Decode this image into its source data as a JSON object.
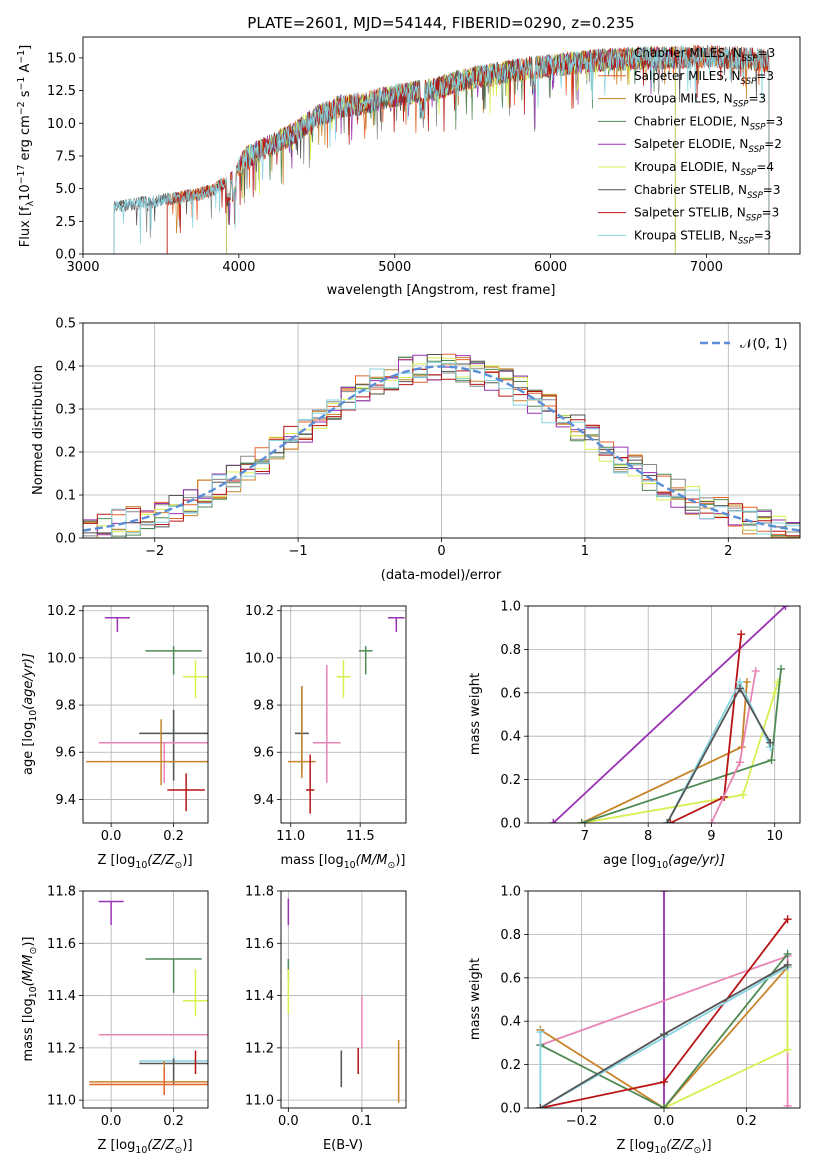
{
  "colors": {
    "chabrier_miles": "#888888",
    "salpeter_miles": "#e8622a",
    "kroupa_miles": "#c8842a",
    "chabrier_elodie": "#4f8a55",
    "salpeter_elodie": "#9a32b4",
    "kroupa_elodie": "#d8ef52",
    "chabrier_stelib": "#555555",
    "salpeter_stelib": "#b81414",
    "kroupa_stelib": "#86d4e0",
    "pink": "#e885b5",
    "gaussian": "#5b8ed8",
    "grid": "#b0b0b0"
  },
  "chart_data": [
    {
      "id": "spectrum",
      "type": "line",
      "title": "PLATE=2601, MJD=54144, FIBERID=0290, z=0.235",
      "xlabel": "wavelength [Angstrom, rest frame]",
      "ylabel": "Flux [f",
      "ylabel_sub": "λ",
      "ylabel_rest": "10",
      "ylabel_sup": "−17",
      "ylabel_units": " erg cm",
      "ylabel_sup2": "−2",
      "ylabel_units2": " s",
      "ylabel_sup3": "−1",
      "ylabel_units3": " A",
      "ylabel_sup4": "−1",
      "ylabel_end": "]",
      "xlim": [
        3000,
        7600
      ],
      "ylim": [
        0,
        16.6
      ],
      "xticks": [
        3000,
        4000,
        5000,
        6000,
        7000
      ],
      "yticks": [
        0.0,
        2.5,
        5.0,
        7.5,
        10.0,
        12.5,
        15.0
      ],
      "grid": false,
      "legend_position": "top-right",
      "legend": [
        {
          "name": "Chabrier MILES, N",
          "sub": "SSP",
          "tail": "=3",
          "color": "chabrier_miles"
        },
        {
          "name": "Salpeter MILES, N",
          "sub": "SSP",
          "tail": "=3",
          "color": "salpeter_miles"
        },
        {
          "name": "Kroupa MILES, N",
          "sub": "SSP",
          "tail": "=3",
          "color": "kroupa_miles"
        },
        {
          "name": "Chabrier ELODIE, N",
          "sub": "SSP",
          "tail": "=3",
          "color": "chabrier_elodie"
        },
        {
          "name": "Salpeter ELODIE, N",
          "sub": "SSP",
          "tail": "=2",
          "color": "salpeter_elodie"
        },
        {
          "name": "Kroupa ELODIE, N",
          "sub": "SSP",
          "tail": "=4",
          "color": "kroupa_elodie"
        },
        {
          "name": "Chabrier STELIB, N",
          "sub": "SSP",
          "tail": "=3",
          "color": "chabrier_stelib"
        },
        {
          "name": "Salpeter STELIB, N",
          "sub": "SSP",
          "tail": "=3",
          "color": "salpeter_stelib"
        },
        {
          "name": "Kroupa STELIB, N",
          "sub": "SSP",
          "tail": "=3",
          "color": "kroupa_stelib"
        }
      ],
      "flux_envelope": {
        "x": [
          3200,
          3300,
          3450,
          3600,
          3750,
          3850,
          3950,
          4050,
          4200,
          4350,
          4500,
          4650,
          4800,
          4950,
          5100,
          5250,
          5400,
          5550,
          5700,
          5850,
          6000,
          6150,
          6300,
          6450,
          6600,
          6750,
          6900,
          7050,
          7200,
          7400
        ],
        "y": [
          3.6,
          3.8,
          4.0,
          4.3,
          4.6,
          5.0,
          5.8,
          7.4,
          8.3,
          9.2,
          10.5,
          11.3,
          11.5,
          12.0,
          12.3,
          12.6,
          13.2,
          13.6,
          13.9,
          14.2,
          14.4,
          14.6,
          14.8,
          14.9,
          15.0,
          15.0,
          15.1,
          15.1,
          15.0,
          14.8
        ]
      },
      "series_ranges": [
        {
          "color": "chabrier_miles",
          "x": [
            3200,
            7400
          ]
        },
        {
          "color": "salpeter_miles",
          "x": [
            3540,
            7400
          ]
        },
        {
          "color": "kroupa_miles",
          "x": [
            3540,
            7400
          ]
        },
        {
          "color": "chabrier_elodie",
          "x": [
            3920,
            6800
          ]
        },
        {
          "color": "salpeter_elodie",
          "x": [
            3920,
            6800
          ]
        },
        {
          "color": "kroupa_elodie",
          "x": [
            3920,
            6800
          ]
        },
        {
          "color": "chabrier_stelib",
          "x": [
            3200,
            7400
          ]
        },
        {
          "color": "salpeter_stelib",
          "x": [
            3540,
            7400
          ]
        },
        {
          "color": "kroupa_stelib",
          "x": [
            3200,
            7400
          ]
        }
      ]
    },
    {
      "id": "residuals",
      "type": "histogram",
      "xlabel": "(data-model)/error",
      "ylabel": "Normed distribution",
      "xlim": [
        -2.5,
        2.5
      ],
      "ylim": [
        0,
        0.5
      ],
      "xticks": [
        -2,
        -1,
        0,
        1,
        2
      ],
      "xticklabels": [
        "−2",
        "−1",
        "0",
        "1",
        "2"
      ],
      "yticks": [
        0.0,
        0.1,
        0.2,
        0.3,
        0.4,
        0.5
      ],
      "grid": true,
      "legend_position": "top-right",
      "legend": [
        {
          "name": "𝒩(0, 1)",
          "color": "gaussian",
          "dashed": true
        }
      ],
      "bin_width": 0.1,
      "noise_amplitude": 0.035,
      "series_colors": [
        "chabrier_miles",
        "salpeter_miles",
        "kroupa_miles",
        "chabrier_elodie",
        "salpeter_elodie",
        "kroupa_elodie",
        "chabrier_stelib",
        "salpeter_stelib",
        "kroupa_stelib"
      ]
    },
    {
      "id": "age_vs_Z",
      "type": "scatter",
      "xlabel": "Z [log",
      "xlabel_sub": "10",
      "xlabel_tail": "(Z/Z",
      "xlabel_sub2": "⊙",
      "xlabel_end": ")]",
      "ylabel": "age  [log",
      "ylabel_sub": "10",
      "ylabel_tail": "(age/yr)]",
      "xlim": [
        -0.09,
        0.31
      ],
      "ylim": [
        9.3,
        10.22
      ],
      "xticks": [
        0.0,
        0.2
      ],
      "yticks": [
        9.4,
        9.6,
        9.8,
        10.0,
        10.2
      ],
      "grid": true,
      "points": [
        {
          "x": 0.02,
          "y": 10.17,
          "xe": 0.04,
          "ye_lo": 0.06,
          "ye_hi": 0.0,
          "color": "salpeter_elodie"
        },
        {
          "x": 0.2,
          "y": 10.03,
          "xe": 0.09,
          "ye_lo": 0.1,
          "ye_hi": 0.02,
          "color": "chabrier_elodie"
        },
        {
          "x": 0.27,
          "y": 9.92,
          "xe": 0.04,
          "ye_lo": 0.09,
          "ye_hi": 0.07,
          "color": "kroupa_elodie"
        },
        {
          "x": 0.2,
          "y": 9.68,
          "xe": 0.11,
          "ye_lo": 0.2,
          "ye_hi": 0.1,
          "color": "kroupa_stelib"
        },
        {
          "x": 0.2,
          "y": 9.68,
          "xe": 0.11,
          "ye_lo": 0.2,
          "ye_hi": 0.1,
          "color": "chabrier_stelib"
        },
        {
          "x": 0.17,
          "y": 9.64,
          "xe": 0.21,
          "ye_lo": 0.17,
          "ye_hi": 0.0,
          "color": "pink"
        },
        {
          "x": 0.16,
          "y": 9.56,
          "xe": 0.24,
          "ye_lo": 0.1,
          "ye_hi": 0.18,
          "color": "kroupa_miles"
        },
        {
          "x": 0.24,
          "y": 9.44,
          "xe": 0.06,
          "ye_lo": 0.09,
          "ye_hi": 0.07,
          "color": "salpeter_stelib"
        }
      ]
    },
    {
      "id": "age_vs_mass",
      "type": "scatter",
      "xlabel": "mass [log",
      "xlabel_sub": "10",
      "xlabel_tail": "(M/M",
      "xlabel_sub2": "⊙",
      "xlabel_end": ")]",
      "xlim": [
        10.93,
        11.83
      ],
      "ylim": [
        9.3,
        10.22
      ],
      "xticks": [
        11.0,
        11.5
      ],
      "yticks": [
        9.4,
        9.6,
        9.8,
        10.0,
        10.2
      ],
      "grid": true,
      "points": [
        {
          "x": 11.76,
          "y": 10.17,
          "xe": 0.06,
          "ye_lo": 0.06,
          "ye_hi": 0.0,
          "color": "salpeter_elodie"
        },
        {
          "x": 11.54,
          "y": 10.03,
          "xe": 0.05,
          "ye_lo": 0.1,
          "ye_hi": 0.02,
          "color": "chabrier_elodie"
        },
        {
          "x": 11.38,
          "y": 9.92,
          "xe": 0.05,
          "ye_lo": 0.09,
          "ye_hi": 0.07,
          "color": "kroupa_elodie"
        },
        {
          "x": 11.26,
          "y": 9.64,
          "xe": 0.1,
          "ye_lo": 0.17,
          "ye_hi": 0.33,
          "color": "pink"
        },
        {
          "x": 11.08,
          "y": 9.68,
          "xe": 0.05,
          "ye_lo": 0.17,
          "ye_hi": 0.2,
          "color": "kroupa_stelib"
        },
        {
          "x": 11.08,
          "y": 9.68,
          "xe": 0.05,
          "ye_lo": 0.17,
          "ye_hi": 0.2,
          "color": "chabrier_stelib"
        },
        {
          "x": 11.08,
          "y": 9.56,
          "xe": 0.1,
          "ye_lo": 0.07,
          "ye_hi": 0.32,
          "color": "kroupa_miles"
        },
        {
          "x": 11.14,
          "y": 9.44,
          "xe": 0.03,
          "ye_lo": 0.1,
          "ye_hi": 0.15,
          "color": "salpeter_stelib"
        }
      ]
    },
    {
      "id": "massweight_vs_age",
      "type": "line",
      "xlabel": "age  [log",
      "xlabel_sub": "10",
      "xlabel_tail": "(age/yr)]",
      "ylabel": "mass weight",
      "xlim": [
        6.1,
        10.4
      ],
      "ylim": [
        0,
        1
      ],
      "xticks": [
        7,
        8,
        9,
        10
      ],
      "yticks": [
        0.0,
        0.2,
        0.4,
        0.6,
        0.8,
        1.0
      ],
      "grid": true,
      "series": [
        {
          "color": "salpeter_elodie",
          "x": [
            6.5,
            10.17
          ],
          "y": [
            0.0,
            1.0
          ]
        },
        {
          "color": "kroupa_miles",
          "x": [
            6.95,
            9.48,
            9.56
          ],
          "y": [
            0.0,
            0.35,
            0.65
          ]
        },
        {
          "color": "kroupa_elodie",
          "x": [
            6.95,
            9.5,
            10.0,
            10.05
          ],
          "y": [
            0.0,
            0.13,
            0.6,
            0.65
          ]
        },
        {
          "color": "chabrier_elodie",
          "x": [
            6.95,
            9.95,
            10.1
          ],
          "y": [
            0.0,
            0.29,
            0.71
          ]
        },
        {
          "color": "salpeter_stelib",
          "x": [
            8.35,
            9.2,
            9.47
          ],
          "y": [
            0.0,
            0.12,
            0.87
          ]
        },
        {
          "color": "pink",
          "x": [
            9.0,
            9.45,
            9.7
          ],
          "y": [
            0.0,
            0.28,
            0.7
          ]
        },
        {
          "color": "kroupa_stelib",
          "x": [
            8.3,
            9.45,
            9.93
          ],
          "y": [
            0.0,
            0.65,
            0.35
          ]
        },
        {
          "color": "chabrier_stelib",
          "x": [
            8.3,
            9.45,
            9.93
          ],
          "y": [
            0.0,
            0.62,
            0.37
          ]
        }
      ]
    },
    {
      "id": "mass_vs_Z",
      "type": "scatter",
      "xlabel": "Z [log",
      "xlabel_sub": "10",
      "xlabel_tail": "(Z/Z",
      "xlabel_sub2": "⊙",
      "xlabel_end": ")]",
      "ylabel": "mass [log",
      "ylabel_sub": "10",
      "ylabel_tail": "(M/M",
      "ylabel_sub2": "⊙",
      "ylabel_end": ")]",
      "xlim": [
        -0.09,
        0.31
      ],
      "ylim": [
        10.97,
        11.8
      ],
      "xticks": [
        0.0,
        0.2
      ],
      "yticks": [
        11.0,
        11.2,
        11.4,
        11.6,
        11.8
      ],
      "grid": true,
      "points": [
        {
          "x": 0.0,
          "y": 11.76,
          "xe": 0.04,
          "ye_lo": 0.09,
          "ye_hi": 0.0,
          "color": "salpeter_elodie"
        },
        {
          "x": 0.2,
          "y": 11.54,
          "xe": 0.09,
          "ye_lo": 0.13,
          "ye_hi": 0.0,
          "color": "chabrier_elodie"
        },
        {
          "x": 0.27,
          "y": 11.38,
          "xe": 0.04,
          "ye_lo": 0.06,
          "ye_hi": 0.12,
          "color": "kroupa_elodie"
        },
        {
          "x": 0.17,
          "y": 11.25,
          "xe": 0.21,
          "ye_lo": 0.0,
          "ye_hi": 0.0,
          "color": "pink"
        },
        {
          "x": 0.2,
          "y": 11.15,
          "xe": 0.11,
          "ye_lo": 0.08,
          "ye_hi": 0.02,
          "color": "kroupa_stelib"
        },
        {
          "x": 0.2,
          "y": 11.14,
          "xe": 0.11,
          "ye_lo": 0.08,
          "ye_hi": 0.02,
          "color": "chabrier_stelib"
        },
        {
          "x": 0.27,
          "y": 11.14,
          "xe": 0.0,
          "ye_lo": 0.04,
          "ye_hi": 0.05,
          "color": "salpeter_stelib"
        },
        {
          "x": 0.17,
          "y": 11.07,
          "xe": 0.24,
          "ye_lo": 0.04,
          "ye_hi": 0.08,
          "color": "kroupa_miles"
        },
        {
          "x": 0.17,
          "y": 11.06,
          "xe": 0.24,
          "ye_lo": 0.04,
          "ye_hi": 0.06,
          "color": "salpeter_miles"
        }
      ]
    },
    {
      "id": "mass_vs_ebv",
      "type": "scatter",
      "xlabel": "E(B-V)",
      "xlim": [
        -0.01,
        0.16
      ],
      "ylim": [
        10.97,
        11.8
      ],
      "xticks": [
        0.0,
        0.1
      ],
      "yticks": [
        11.0,
        11.2,
        11.4,
        11.6,
        11.8
      ],
      "grid": true,
      "points": [
        {
          "x": 0.0,
          "y": 11.72,
          "xe": 0.0,
          "ye_lo": 0.05,
          "ye_hi": 0.05,
          "color": "salpeter_elodie"
        },
        {
          "x": 0.0,
          "y": 11.5,
          "xe": 0.0,
          "ye_lo": 0.04,
          "ye_hi": 0.04,
          "color": "chabrier_elodie"
        },
        {
          "x": 0.0,
          "y": 11.42,
          "xe": 0.0,
          "ye_lo": 0.09,
          "ye_hi": 0.08,
          "color": "kroupa_elodie"
        },
        {
          "x": 0.1,
          "y": 11.25,
          "xe": 0.0,
          "ye_lo": 0.05,
          "ye_hi": 0.15,
          "color": "pink"
        },
        {
          "x": 0.095,
          "y": 11.15,
          "xe": 0.0,
          "ye_lo": 0.05,
          "ye_hi": 0.05,
          "color": "salpeter_stelib"
        },
        {
          "x": 0.072,
          "y": 11.12,
          "xe": 0.0,
          "ye_lo": 0.07,
          "ye_hi": 0.07,
          "color": "kroupa_stelib"
        },
        {
          "x": 0.072,
          "y": 11.12,
          "xe": 0.0,
          "ye_lo": 0.07,
          "ye_hi": 0.07,
          "color": "chabrier_stelib"
        },
        {
          "x": 0.15,
          "y": 11.1,
          "xe": 0.0,
          "ye_lo": 0.11,
          "ye_hi": 0.13,
          "color": "kroupa_miles"
        }
      ]
    },
    {
      "id": "massweight_vs_Z",
      "type": "line",
      "xlabel": "Z [log",
      "xlabel_sub": "10",
      "xlabel_tail": "(Z/Z",
      "xlabel_sub2": "⊙",
      "xlabel_end": ")]",
      "ylabel": "mass weight",
      "xlim": [
        -0.33,
        0.33
      ],
      "ylim": [
        0,
        1
      ],
      "xticks": [
        -0.2,
        0.0,
        0.2
      ],
      "xticklabels": [
        "−0.2",
        "0.0",
        "0.2"
      ],
      "yticks": [
        0.0,
        0.2,
        0.4,
        0.6,
        0.8,
        1.0
      ],
      "grid": true,
      "series": [
        {
          "color": "salpeter_elodie",
          "x": [
            0.0,
            0.0
          ],
          "y": [
            0.0,
            1.0
          ]
        },
        {
          "color": "pink",
          "x": [
            -0.3,
            0.3,
            0.3
          ],
          "y": [
            0.29,
            0.7,
            0.01
          ]
        },
        {
          "color": "kroupa_elodie",
          "x": [
            0.0,
            0.3,
            0.3
          ],
          "y": [
            0.0,
            0.27,
            0.65
          ]
        },
        {
          "color": "kroupa_miles",
          "x": [
            -0.3,
            0.0,
            0.3
          ],
          "y": [
            0.36,
            0.0,
            0.65
          ]
        },
        {
          "color": "chabrier_elodie",
          "x": [
            -0.3,
            0.0,
            0.3
          ],
          "y": [
            0.29,
            0.0,
            0.71
          ]
        },
        {
          "color": "salpeter_stelib",
          "x": [
            -0.3,
            0.0,
            0.3
          ],
          "y": [
            0.0,
            0.12,
            0.87
          ]
        },
        {
          "color": "kroupa_stelib",
          "x": [
            -0.3,
            -0.3,
            0.3
          ],
          "y": [
            0.35,
            0.0,
            0.65
          ]
        },
        {
          "color": "chabrier_stelib",
          "x": [
            -0.3,
            0.0,
            0.3
          ],
          "y": [
            0.0,
            0.34,
            0.66
          ]
        }
      ]
    }
  ]
}
